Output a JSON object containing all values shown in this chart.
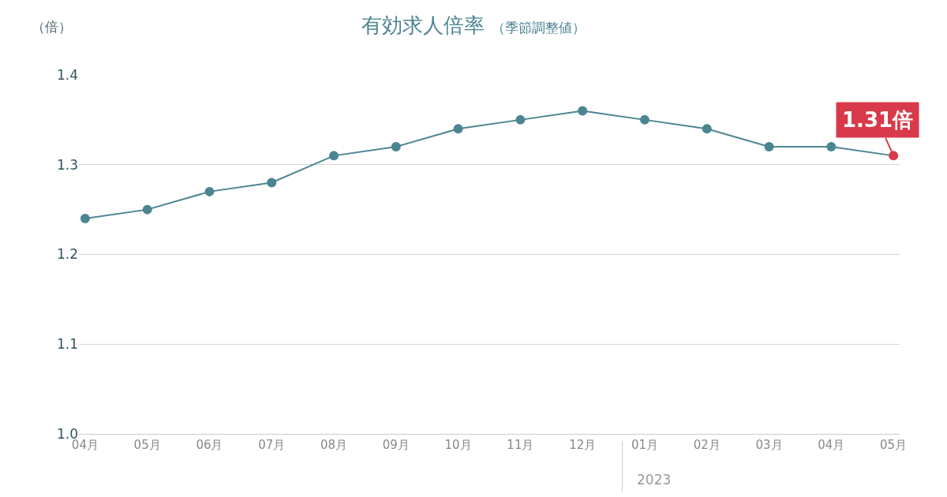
{
  "chart_data": {
    "type": "line",
    "title": "有効求人倍率",
    "subtitle": "（季節調整値）",
    "ylabel": "（倍）",
    "categories": [
      "04月",
      "05月",
      "06月",
      "07月",
      "08月",
      "09月",
      "10月",
      "11月",
      "12月",
      "01月",
      "02月",
      "03月",
      "04月",
      "05月"
    ],
    "series": [
      {
        "color": "#4a8591",
        "values": [
          1.24,
          1.25,
          1.27,
          1.28,
          1.31,
          1.32,
          1.34,
          1.35,
          1.36,
          1.35,
          1.34,
          1.32,
          1.32,
          1.31
        ],
        "colors": [
          "#4a8591",
          "#4a8591",
          "#4a8591",
          "#4a8591",
          "#4a8591",
          "#4a8591",
          "#4a8591",
          "#4a8591",
          "#4a8591",
          "#4a8591",
          "#4a8591",
          "#4a8591",
          "#4a8591",
          "#d93a4b"
        ],
        "value_labels": [
          null,
          null,
          null,
          null,
          null,
          null,
          null,
          null,
          null,
          null,
          null,
          null,
          null,
          "1.31倍"
        ]
      }
    ],
    "annotations": [
      "2023"
    ],
    "ylim": [
      1.0,
      1.4
    ],
    "yticks": [
      {
        "value": 1.0,
        "label": "1.0"
      },
      1.1,
      1.2,
      1.3,
      1.4
    ],
    "grid": "y",
    "marker": "circle",
    "line_style": "solid"
  }
}
